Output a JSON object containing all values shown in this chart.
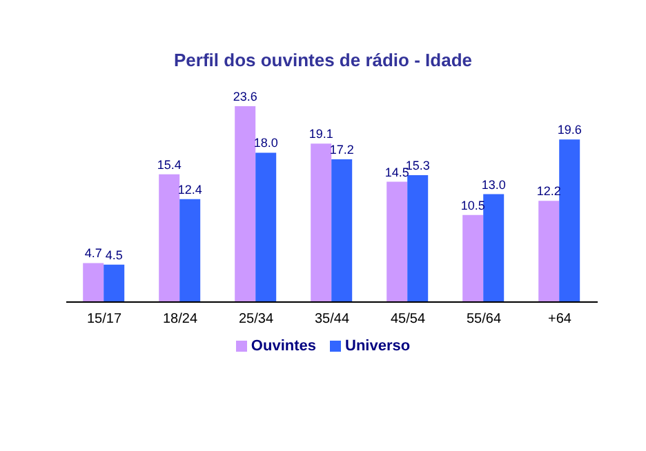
{
  "chart_data": {
    "type": "bar",
    "title": "Perfil dos ouvintes de rádio - Idade",
    "categories": [
      "15/17",
      "18/24",
      "25/34",
      "35/44",
      "45/54",
      "55/64",
      "+64"
    ],
    "series": [
      {
        "name": "Ouvintes",
        "color": "#cc99ff",
        "values": [
          4.7,
          15.4,
          23.6,
          19.1,
          14.5,
          10.5,
          12.2
        ],
        "value_labels": [
          "4.7",
          "15.4",
          "23.6",
          "19.1",
          "14.5",
          "10.5",
          "12.2"
        ]
      },
      {
        "name": "Universo",
        "color": "#3366ff",
        "values": [
          4.5,
          12.4,
          18.0,
          17.2,
          15.3,
          13.0,
          19.6
        ],
        "value_labels": [
          "4.5",
          "12.4",
          "18.0",
          "17.2",
          "15.3",
          "13.0",
          "19.6"
        ]
      }
    ],
    "legend": "bottom",
    "grid": false
  }
}
